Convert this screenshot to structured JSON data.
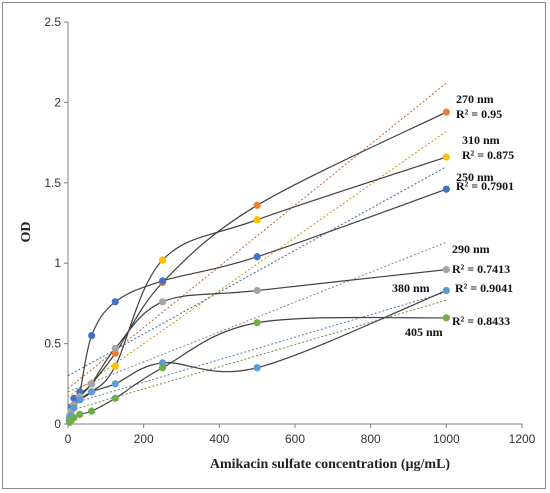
{
  "chart_data": {
    "type": "scatter",
    "xlabel": "Amikacin  sulfate concentration  (µg/mL)",
    "ylabel": "OD",
    "xlim": [
      0,
      1200
    ],
    "ylim": [
      0,
      2.5
    ],
    "xticks": [
      "0",
      "200",
      "400",
      "600",
      "800",
      "1000",
      "1200"
    ],
    "yticks": [
      "0",
      "0.5",
      "1",
      "1.5",
      "2",
      "2.5"
    ],
    "grid": false,
    "x": [
      3.9,
      7.8,
      15.6,
      31.25,
      62.5,
      125,
      250,
      500,
      1000
    ],
    "series": [
      {
        "name": "270 nm",
        "r2": "R² = 0.95",
        "color": "#ED7D31",
        "values": [
          0.05,
          0.08,
          0.12,
          0.18,
          0.25,
          0.44,
          0.88,
          1.36,
          1.94
        ],
        "trend": [
          0.22,
          0.0019
        ]
      },
      {
        "name": "310 nm",
        "r2": "R² = 0.875",
        "color": "#FFC000",
        "values": [
          0.03,
          0.06,
          0.1,
          0.15,
          0.2,
          0.36,
          1.02,
          1.27,
          1.66
        ],
        "trend": [
          0.17,
          0.00165
        ]
      },
      {
        "name": "250 nm",
        "r2": "R² = 0.7901",
        "color": "#4472C4",
        "values": [
          0.04,
          0.1,
          0.16,
          0.2,
          0.55,
          0.76,
          0.89,
          1.04,
          1.46
        ],
        "trend": [
          0.3,
          0.0013
        ]
      },
      {
        "name": "290 nm",
        "r2": "R² = 0.7413",
        "color": "#A5A5A5",
        "values": [
          0.05,
          0.08,
          0.12,
          0.17,
          0.25,
          0.47,
          0.76,
          0.83,
          0.96
        ],
        "trend": [
          0.2,
          0.00093
        ]
      },
      {
        "name": "380 nm",
        "r2": "R² = 0.9041",
        "color": "#5B9BD5",
        "values": [
          0.02,
          0.05,
          0.1,
          0.15,
          0.2,
          0.25,
          0.38,
          0.35,
          0.83
        ],
        "trend": [
          0.12,
          0.0007
        ]
      },
      {
        "name": "405 nm",
        "r2": "R² = 0.8433",
        "color": "#70AD47",
        "values": [
          0.01,
          0.02,
          0.04,
          0.06,
          0.08,
          0.16,
          0.35,
          0.63,
          0.66
        ],
        "trend": [
          0.08,
          0.00069
        ]
      }
    ]
  }
}
